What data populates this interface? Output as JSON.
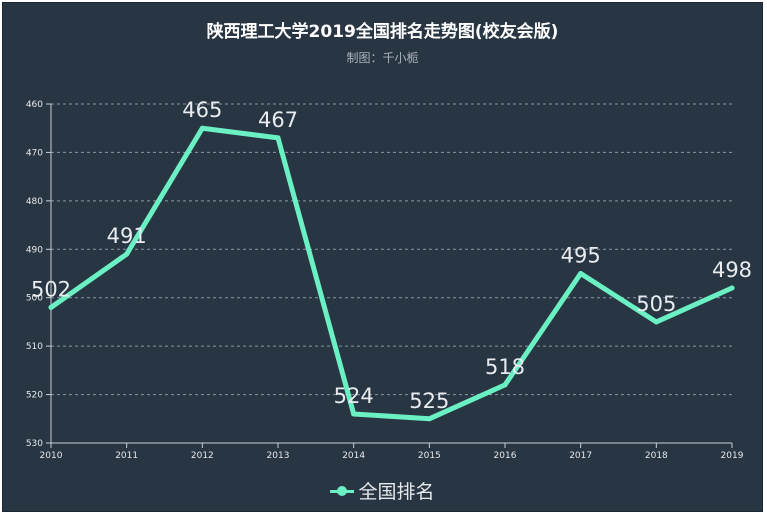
{
  "title": "陕西理工大学2019全国排名走势图(校友会版)",
  "subtitle": "制图：千小栀",
  "legend_label": "全国排名",
  "colors": {
    "background": "#283542",
    "line": "#6bf0c4",
    "grid": "#8b97a3",
    "text": "#e6e9ec"
  },
  "chart_data": {
    "type": "line",
    "title": "陕西理工大学2019全国排名走势图(校友会版)",
    "subtitle": "制图：千小栀",
    "categories": [
      "2010",
      "2011",
      "2012",
      "2013",
      "2014",
      "2015",
      "2016",
      "2017",
      "2018",
      "2019"
    ],
    "series": [
      {
        "name": "全国排名",
        "values": [
          502,
          491,
          465,
          467,
          524,
          525,
          518,
          495,
          505,
          498
        ]
      }
    ],
    "ylim": [
      460,
      530
    ],
    "y_inverted": true,
    "yticks": [
      460,
      470,
      480,
      490,
      500,
      510,
      520,
      530
    ],
    "grid": "horizontal dashed",
    "legend": "bottom-center"
  }
}
